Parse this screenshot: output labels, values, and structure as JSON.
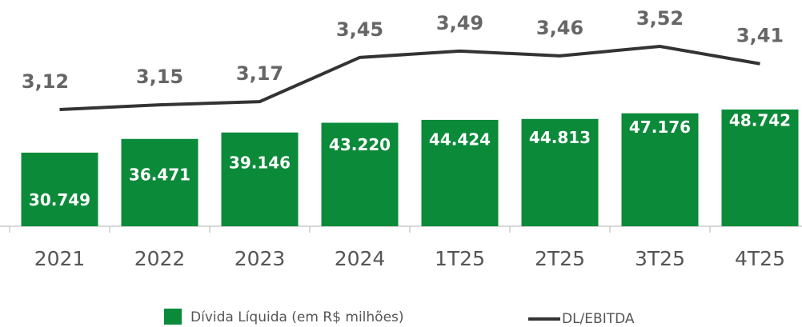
{
  "chart_data": {
    "type": "bar",
    "categories": [
      "2021",
      "2022",
      "2023",
      "2024",
      "1T25",
      "2T25",
      "3T25",
      "4T25"
    ],
    "series": [
      {
        "name": "Dívida Líquida (em R$ milhões)",
        "color": "#0b8a3a",
        "values": [
          30749,
          36471,
          39146,
          43220,
          44424,
          44813,
          47176,
          48742
        ],
        "value_labels": [
          "30.749",
          "36.471",
          "39.146",
          "43.220",
          "44.424",
          "44.813",
          "47.176",
          "48.742"
        ]
      },
      {
        "name": "DL/EBITDA",
        "type": "line",
        "axis": "y2",
        "color": "#333333",
        "values": [
          3.12,
          3.15,
          3.17,
          3.45,
          3.49,
          3.46,
          3.52,
          3.41
        ],
        "value_labels": [
          "3,12",
          "3,15",
          "3,17",
          "3,45",
          "3,49",
          "3,46",
          "3,52",
          "3,41"
        ]
      }
    ]
  }
}
